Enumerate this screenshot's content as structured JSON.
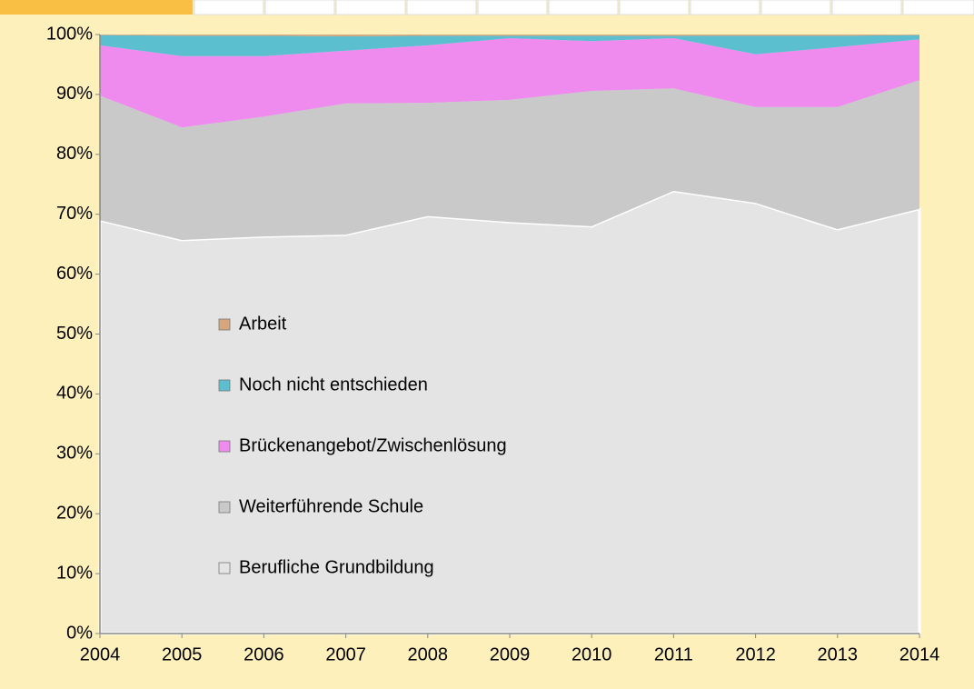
{
  "chart_data": {
    "type": "stacked_area",
    "x": [
      2004,
      2005,
      2006,
      2007,
      2008,
      2009,
      2010,
      2011,
      2012,
      2013,
      2014
    ],
    "xlim": [
      2004,
      2014
    ],
    "xticks": [
      2004,
      2005,
      2006,
      2007,
      2008,
      2009,
      2010,
      2011,
      2012,
      2013,
      2014
    ],
    "ylim": [
      0,
      100
    ],
    "yticks": [
      {
        "value": 0,
        "label": "0%"
      },
      {
        "value": 10,
        "label": "10%"
      },
      {
        "value": 20,
        "label": "20%"
      },
      {
        "value": 30,
        "label": "30%"
      },
      {
        "value": 40,
        "label": "40%"
      },
      {
        "value": 50,
        "label": "50%"
      },
      {
        "value": 60,
        "label": "60%"
      },
      {
        "value": 70,
        "label": "70%"
      },
      {
        "value": 80,
        "label": "80%"
      },
      {
        "value": 90,
        "label": "90%"
      },
      {
        "value": 100,
        "label": "100%"
      }
    ],
    "legend": "inside-left",
    "series": [
      {
        "name": "Berufliche Grundbildung",
        "color": "#e4e4e4",
        "values": [
          69.0,
          65.7,
          66.3,
          66.6,
          69.7,
          68.7,
          68.0,
          73.9,
          71.9,
          67.5,
          70.9
        ]
      },
      {
        "name": "Weiterführende Schule",
        "color": "#c9c9c9",
        "values": [
          20.8,
          18.8,
          20.0,
          21.9,
          18.9,
          20.4,
          22.6,
          17.1,
          16.0,
          20.4,
          21.5
        ]
      },
      {
        "name": "Brückenangebot/Zwischenlösung",
        "color": "#ef8bef",
        "values": [
          8.4,
          11.9,
          10.1,
          8.8,
          9.6,
          10.3,
          8.3,
          8.4,
          8.8,
          10.0,
          6.8
        ]
      },
      {
        "name": "Noch nicht entschieden",
        "color": "#5cbfd0",
        "values": [
          1.7,
          3.4,
          3.4,
          2.4,
          1.6,
          0.4,
          0.9,
          0.4,
          3.1,
          1.9,
          0.7
        ]
      },
      {
        "name": "Arbeit",
        "color": "#d6a77c",
        "values": [
          0.1,
          0.2,
          0.2,
          0.3,
          0.2,
          0.2,
          0.2,
          0.2,
          0.2,
          0.2,
          0.1
        ]
      }
    ]
  }
}
